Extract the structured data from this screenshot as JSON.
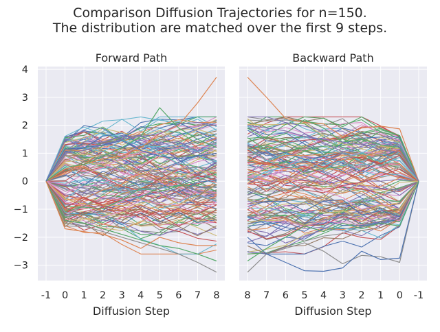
{
  "figure": {
    "suptitle_line1": "Comparison Diffusion Trajectories for n=150.",
    "suptitle_line2": "The distribution are matched over the first 9 steps."
  },
  "colors": {
    "axes_bg": "#eaeaf2",
    "grid": "#ffffff",
    "text": "#262626",
    "palette": [
      "#4c72b0",
      "#dd8452",
      "#55a868",
      "#c44e52",
      "#8172b3",
      "#937860",
      "#da8bc3",
      "#8c8c8c",
      "#ccb974",
      "#64b5cd"
    ]
  },
  "chart_data": [
    {
      "type": "line",
      "title": "Forward Path",
      "xlabel": "Diffusion Step",
      "ylabel": "",
      "x_tick_labels": [
        "-1",
        "0",
        "1",
        "2",
        "3",
        "4",
        "5",
        "6",
        "7",
        "8"
      ],
      "y_ticks": [
        -3,
        -2,
        -1,
        0,
        1,
        2,
        3,
        4
      ],
      "xlim": [
        -1,
        8
      ],
      "ylim": [
        -3.55,
        4.1
      ],
      "grid": true,
      "n_trajectories": 150,
      "start_value": 0,
      "start_x": "-1",
      "end_x": "8",
      "highlight_series": [
        {
          "color": "#dd8452",
          "values": [
            0,
            0.3,
            0.6,
            0.8,
            0.9,
            1.2,
            1.7,
            2.0,
            2.8,
            3.72
          ]
        },
        {
          "color": "#55a868",
          "values": [
            0,
            0.5,
            0.6,
            0.9,
            1.2,
            1.6,
            2.63,
            1.9,
            1.5,
            1.2
          ]
        },
        {
          "color": "#8172b3",
          "values": [
            0,
            1.0,
            1.1,
            1.3,
            1.5,
            1.6,
            1.7,
            2.05,
            2.1,
            2.0
          ]
        },
        {
          "color": "#8c8c8c",
          "values": [
            0,
            -1.5,
            -1.6,
            -1.8,
            -2.0,
            -2.2,
            -2.4,
            -2.6,
            -2.9,
            -3.25
          ]
        },
        {
          "color": "#55a868",
          "values": [
            0,
            -1.4,
            -1.5,
            -1.7,
            -1.9,
            -2.1,
            -2.3,
            -2.4,
            -2.6,
            -2.85
          ]
        },
        {
          "color": "#dd8452",
          "values": [
            0,
            -1.7,
            -1.8,
            -1.9,
            -2.1,
            -2.4,
            -2.0,
            -2.2,
            -2.3,
            -2.3
          ]
        },
        {
          "color": "#4c72b0",
          "values": [
            0,
            1.15,
            1.2,
            1.3,
            1.45,
            1.1,
            0.9,
            0.8,
            0.9,
            1.0
          ]
        }
      ]
    },
    {
      "type": "line",
      "title": "Backward Path",
      "xlabel": "Diffusion Step",
      "ylabel": "",
      "x_tick_labels": [
        "8",
        "7",
        "6",
        "5",
        "4",
        "3",
        "2",
        "1",
        "0",
        "-1"
      ],
      "y_ticks": [
        -3,
        -2,
        -1,
        0,
        1,
        2,
        3,
        4
      ],
      "xlim": [
        8,
        -1
      ],
      "ylim": [
        -3.55,
        4.1
      ],
      "grid": true,
      "n_trajectories": 150,
      "start_value": 0,
      "start_x": "-1",
      "end_x": "8",
      "highlight_series": [
        {
          "color": "#dd8452",
          "values": [
            3.72,
            3.0,
            2.25,
            2.1,
            2.05,
            1.6,
            1.9,
            1.97,
            1.87,
            0
          ]
        },
        {
          "color": "#8c8c8c",
          "values": [
            -3.25,
            -2.6,
            -2.4,
            -2.2,
            -2.5,
            -2.95,
            -2.65,
            -2.7,
            -2.9,
            0
          ]
        },
        {
          "color": "#4c72b0",
          "values": [
            -2.0,
            -2.6,
            -2.9,
            -3.2,
            -3.22,
            -3.1,
            -2.5,
            -2.8,
            -2.75,
            0
          ]
        },
        {
          "color": "#55a868",
          "values": [
            -2.85,
            -2.4,
            -2.0,
            -1.6,
            -1.8,
            -1.5,
            -1.7,
            -1.5,
            -1.6,
            0
          ]
        },
        {
          "color": "#55a868",
          "values": [
            1.9,
            1.5,
            1.7,
            2.2,
            1.9,
            1.4,
            1.5,
            1.3,
            1.2,
            0
          ]
        },
        {
          "color": "#8172b3",
          "values": [
            2.0,
            1.9,
            1.8,
            1.6,
            1.5,
            1.4,
            1.3,
            1.5,
            1.3,
            0
          ]
        }
      ]
    }
  ]
}
